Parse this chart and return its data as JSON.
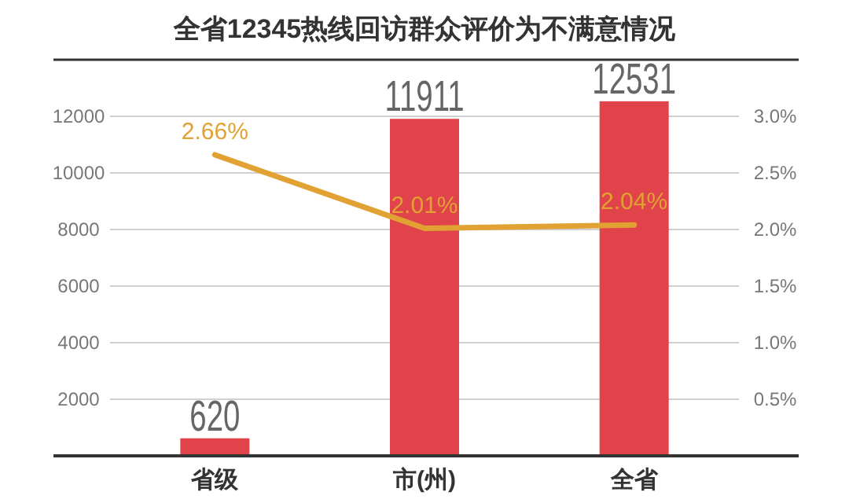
{
  "chart_data": {
    "type": "bar",
    "title": "全省12345热线回访群众评价为不满意情况",
    "categories": [
      "省级",
      "市(州)",
      "全省"
    ],
    "series": [
      {
        "color": "#e0434a",
        "values": [
          620,
          11911,
          12531
        ],
        "value_labels": [
          "620",
          "11911",
          "12531"
        ]
      },
      {
        "type": "line",
        "axis": "y2",
        "color": "#e2a233",
        "values": [
          2.66,
          2.01,
          2.04
        ],
        "value_labels": [
          "2.66%",
          "2.01%",
          "2.04%"
        ],
        "marker": "none",
        "line_style": "solid"
      }
    ],
    "ylim": [
      0,
      14000
    ],
    "yticks": [
      2000,
      4000,
      6000,
      8000,
      10000,
      12000
    ],
    "y2lim": [
      0,
      3.5
    ],
    "y2ticks": [
      {
        "value": 0.5,
        "label": "0.5%"
      },
      {
        "value": 1.0,
        "label": "1.0%"
      },
      {
        "value": 1.5,
        "label": "1.5%"
      },
      {
        "value": 2.0,
        "label": "2.0%"
      },
      {
        "value": 2.5,
        "label": "2.5%"
      },
      {
        "value": 3.0,
        "label": "3.0%"
      }
    ],
    "grid": "y"
  }
}
